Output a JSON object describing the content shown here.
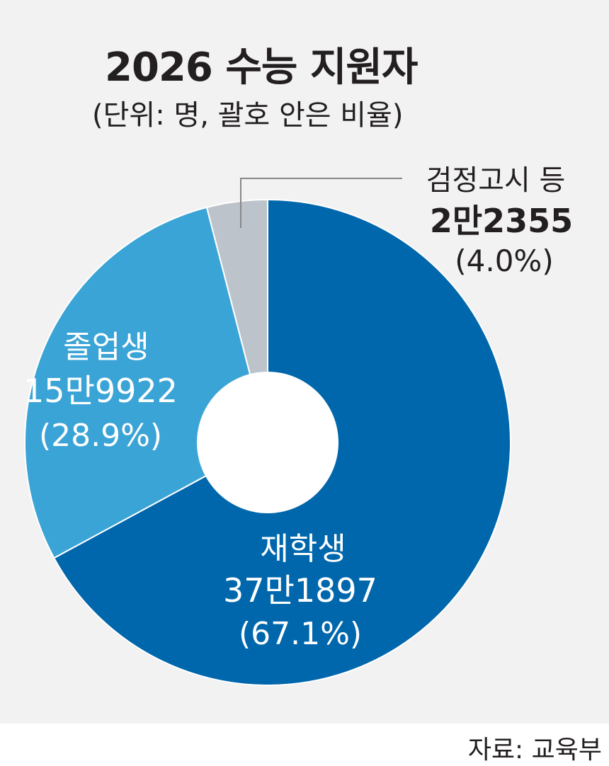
{
  "title": "2026 수능 지원자",
  "subtitle": "(단위: 명, 괄호 안은 비율)",
  "source": "자료: 교육부",
  "chart_data": {
    "type": "pie",
    "title": "2026 수능 지원자",
    "subtitle": "(단위: 명, 괄호 안은 비율)",
    "donut": true,
    "slices": [
      {
        "label": "재학생",
        "value_text": "37만1897",
        "value": 371897,
        "percent_text": "(67.1%)",
        "percent": 67.1,
        "color": "#0067ac"
      },
      {
        "label": "졸업생",
        "value_text": "15만9922",
        "value": 159922,
        "percent_text": "(28.9%)",
        "percent": 28.9,
        "color": "#3ba4d6"
      },
      {
        "label": "검정고시 등",
        "value_text": "2만2355",
        "value": 22355,
        "percent_text": "(4.0%)",
        "percent": 4.0,
        "color": "#bcc3cb"
      }
    ],
    "source": "자료: 교육부"
  }
}
